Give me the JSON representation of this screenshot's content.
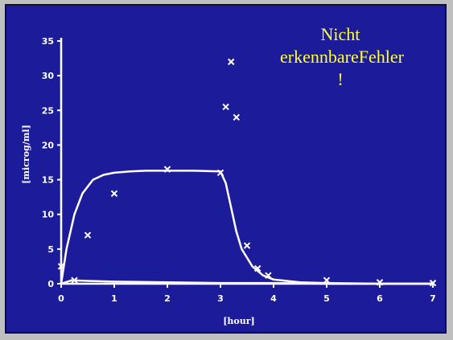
{
  "annotation": {
    "line1": "Nicht",
    "line2": "erkennbareFehler",
    "line3": "!"
  },
  "colors": {
    "background": "#1c1c9a",
    "axes": "#ffffff",
    "annotation": "#ffff33"
  },
  "chart_data": {
    "type": "scatter",
    "title": "",
    "xlabel": "[hour]",
    "ylabel": "[microg/ml]",
    "xlim": [
      0,
      7
    ],
    "ylim": [
      0,
      35
    ],
    "xticks": [
      "0",
      "1",
      "2",
      "3",
      "4",
      "5",
      "6",
      "7"
    ],
    "yticks": [
      "0",
      "5",
      "10",
      "15",
      "20",
      "25",
      "30",
      "35"
    ],
    "grid": false,
    "legend": "none",
    "series": [
      {
        "kind": "points",
        "marker": "x",
        "x": [
          0,
          0.25,
          0.5,
          1,
          2,
          3,
          3.1,
          3.2,
          3.3,
          3.5,
          3.7,
          3.9,
          5,
          6,
          7
        ],
        "y": [
          2.5,
          0.5,
          7,
          13,
          16.5,
          16,
          25.5,
          32,
          24,
          5.5,
          2.2,
          1.2,
          0.5,
          0.2,
          0.1
        ]
      },
      {
        "kind": "fit-line",
        "x": [
          0,
          0.1,
          0.25,
          0.4,
          0.6,
          0.8,
          1,
          1.3,
          1.6,
          2,
          2.5,
          3,
          3.1,
          3.2,
          3.3,
          3.4,
          3.6,
          3.8,
          4,
          4.5,
          5,
          6,
          7
        ],
        "y": [
          0,
          5,
          10,
          13,
          15,
          15.7,
          16,
          16.2,
          16.3,
          16.3,
          16.3,
          16.2,
          14.5,
          11,
          7.5,
          5,
          2.5,
          1.2,
          0.6,
          0.2,
          0.1,
          0,
          0
        ]
      },
      {
        "kind": "fit-line",
        "x": [
          0,
          0.2,
          0.5,
          1,
          2,
          3,
          4,
          5,
          6,
          7
        ],
        "y": [
          0,
          0.5,
          0.4,
          0.3,
          0.2,
          0.1,
          0.1,
          0,
          0,
          0
        ]
      }
    ]
  }
}
